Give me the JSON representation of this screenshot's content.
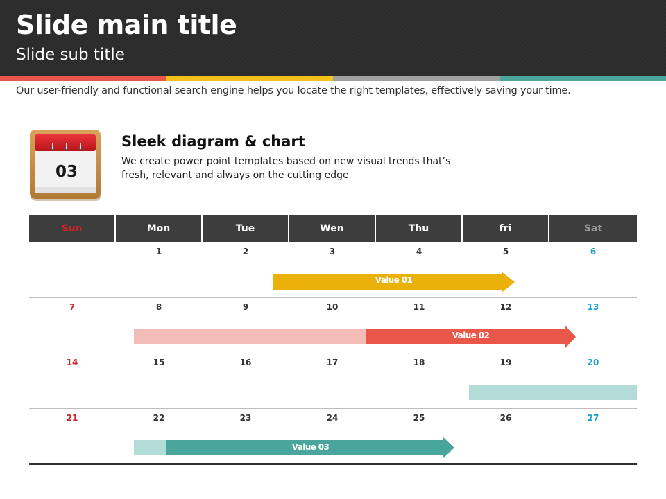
{
  "slide": {
    "title": "Slide main title",
    "subtitle": "Slide sub title",
    "description": "Our user-friendly and functional search engine helps you locate the right templates, effectively saving your time."
  },
  "colors": {
    "header_bg": "#2a2a2a",
    "stripes": [
      "#e8574a",
      "#f5c21b",
      "#a0a0a0",
      "#4aa59c"
    ],
    "weekend_sun": "#cc2222",
    "weekend_sat": "#1a9fc9",
    "table_header": "#3d3d3d"
  },
  "feature": {
    "icon": "calendar-icon",
    "number": "03",
    "title": "Sleek diagram & chart",
    "text": "We create power point templates based on new visual trends that’s fresh, relevant and always on the cutting edge"
  },
  "calendar": {
    "days": [
      "Sun",
      "Mon",
      "Tue",
      "Wen",
      "Thu",
      "fri",
      "Sat"
    ],
    "weeks": [
      [
        "",
        "1",
        "2",
        "3",
        "4",
        "5",
        "6"
      ],
      [
        "7",
        "8",
        "9",
        "10",
        "11",
        "12",
        "13"
      ],
      [
        "14",
        "15",
        "16",
        "17",
        "18",
        "19",
        "20"
      ],
      [
        "21",
        "22",
        "23",
        "24",
        "25",
        "26",
        "27"
      ]
    ]
  },
  "timeline": [
    {
      "label": "Value 01",
      "color": "#e9b10a"
    },
    {
      "label": "Value 02",
      "color": "#e8574a",
      "tail_color": "#f4bcb6"
    },
    {
      "label": "",
      "color": "#b3dbd8"
    },
    {
      "label": "Value 03",
      "color": "#4aa59c",
      "tail_color": "#b3dbd8"
    }
  ]
}
